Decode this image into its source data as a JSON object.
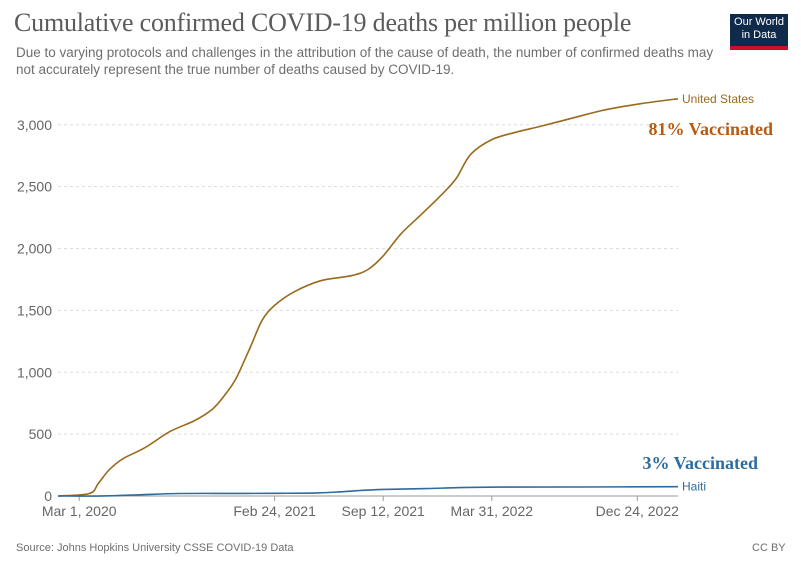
{
  "header": {
    "title": "Cumulative confirmed COVID-19 deaths per million people",
    "subtitle": "Due to varying protocols and challenges in the attribution of the cause of death, the number of confirmed deaths may not accurately represent the true number of deaths caused by COVID-19."
  },
  "logo": {
    "line1": "Our World",
    "line2": "in Data"
  },
  "footer": {
    "source": "Source: Johns Hopkins University CSSE COVID-19 Data",
    "license": "CC BY"
  },
  "colors": {
    "us": "#9a6a1c",
    "haiti": "#2e6b9e",
    "grid": "#dddddd",
    "annot_us": "#b85a10",
    "annot_haiti": "#2e6b9e"
  },
  "chart_data": {
    "type": "line",
    "title": "Cumulative confirmed COVID-19 deaths per million people",
    "xlabel": "",
    "ylabel": "",
    "ylim": [
      0,
      3200
    ],
    "yticks": [
      0,
      500,
      1000,
      1500,
      2000,
      2500,
      3000
    ],
    "ytick_labels": [
      "0",
      "500",
      "1,000",
      "1,500",
      "2,000",
      "2,500",
      "3,000"
    ],
    "xticks": [
      "2020-03-01",
      "2021-02-24",
      "2021-09-12",
      "2022-03-31",
      "2022-12-24"
    ],
    "xtick_labels": [
      "Mar 1, 2020",
      "Feb 24, 2021",
      "Sep 12, 2021",
      "Mar 31, 2022",
      "Dec 24, 2022"
    ],
    "grid": true,
    "series": [
      {
        "name": "United States",
        "x": [
          "2020-01-22",
          "2020-03-20",
          "2020-04-05",
          "2020-04-25",
          "2020-05-20",
          "2020-06-30",
          "2020-08-15",
          "2020-09-30",
          "2020-11-01",
          "2020-11-25",
          "2020-12-15",
          "2021-01-10",
          "2021-02-01",
          "2021-02-24",
          "2021-04-01",
          "2021-05-20",
          "2021-07-15",
          "2021-08-15",
          "2021-09-12",
          "2021-10-15",
          "2021-11-20",
          "2022-01-01",
          "2022-01-25",
          "2022-02-20",
          "2022-03-31",
          "2022-05-15",
          "2022-07-01",
          "2022-09-01",
          "2022-10-15",
          "2022-12-01",
          "2023-01-15",
          "2023-03-09"
        ],
        "y": [
          0,
          20,
          100,
          210,
          300,
          390,
          520,
          610,
          700,
          820,
          950,
          1200,
          1420,
          1540,
          1650,
          1740,
          1780,
          1830,
          1940,
          2120,
          2270,
          2450,
          2570,
          2760,
          2880,
          2940,
          2990,
          3060,
          3110,
          3150,
          3180,
          3210
        ]
      },
      {
        "name": "Haiti",
        "x": [
          "2020-01-22",
          "2020-04-15",
          "2020-06-20",
          "2020-09-01",
          "2020-12-01",
          "2021-03-01",
          "2021-05-15",
          "2021-06-30",
          "2021-08-15",
          "2021-09-12",
          "2021-12-01",
          "2022-02-01",
          "2022-04-15",
          "2022-09-01",
          "2023-03-09"
        ],
        "y": [
          0,
          1,
          10,
          20,
          21,
          22,
          25,
          35,
          48,
          53,
          60,
          68,
          72,
          73,
          75
        ]
      }
    ],
    "annotations": [
      {
        "text": "81% Vaccinated",
        "series": "United States"
      },
      {
        "text": "3% Vaccinated",
        "series": "Haiti"
      }
    ]
  }
}
